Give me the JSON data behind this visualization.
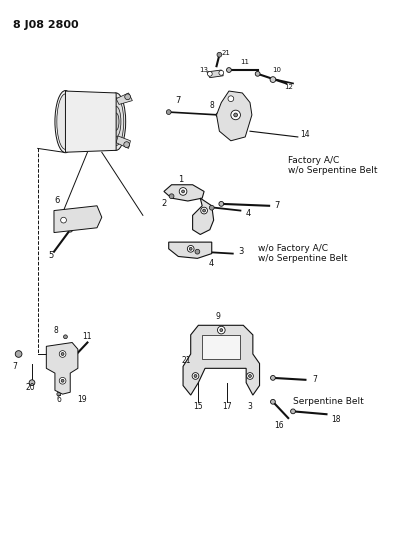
{
  "title": "8 J08 2800",
  "bg_color": "#ffffff",
  "fg_color": "#111111",
  "fig_width": 3.96,
  "fig_height": 5.33,
  "dpi": 100,
  "labels": {
    "factory_ac": "Factory A/C\nw/o Serpentine Belt",
    "wo_factory_ac": "w/o Factory A/C\nw/o Serpentine Belt",
    "serpentine": "Serpentine Belt"
  }
}
